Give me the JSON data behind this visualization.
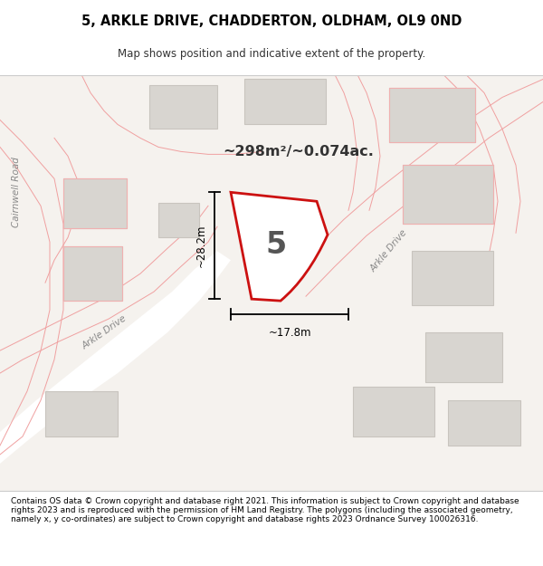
{
  "title": "5, ARKLE DRIVE, CHADDERTON, OLDHAM, OL9 0ND",
  "subtitle": "Map shows position and indicative extent of the property.",
  "area_text": "~298m²/~0.074ac.",
  "label_number": "5",
  "dim_horizontal": "~17.8m",
  "dim_vertical": "~28.2m",
  "road_label_bottom_left": "Arkle Drive",
  "road_label_right": "Arkle Drive",
  "road_label_left": "Cairnwell Road",
  "footer": "Contains OS data © Crown copyright and database right 2021. This information is subject to Crown copyright and database rights 2023 and is reproduced with the permission of HM Land Registry. The polygons (including the associated geometry, namely x, y co-ordinates) are subject to Crown copyright and database rights 2023 Ordnance Survey 100026316.",
  "bg_color": "#f5f2ee",
  "map_bg": "#f0ede8",
  "road_fill": "#ffffff",
  "road_edge": "#e8c8c8",
  "plot_fill": "#ffffff",
  "plot_edge": "#cc1111",
  "building_fill": "#d8d5d0",
  "building_edge": "#c8c4be",
  "pink_edge": "#f0b0b0",
  "text_color": "#333333",
  "road_text_color": "#999999",
  "dim_color": "#111111"
}
